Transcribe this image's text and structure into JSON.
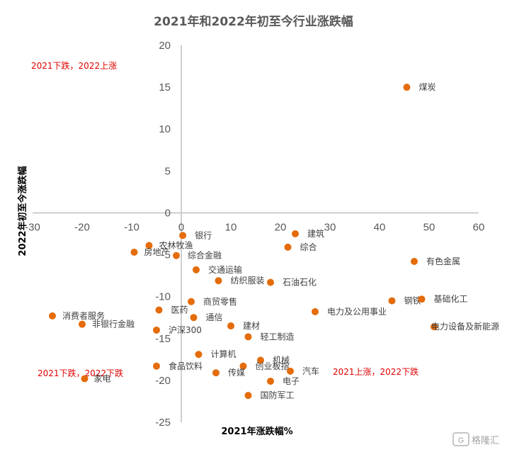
{
  "chart_data": {
    "type": "scatter",
    "title": "2021年和2022年初至今行业涨跌幅",
    "xlabel": "2021年涨跌幅%",
    "ylabel": "2022年初至今涨跌幅",
    "xlim": [
      -30,
      60
    ],
    "ylim": [
      -25,
      20
    ],
    "x_ticks": [
      "-30",
      "-20",
      "-10",
      "0",
      "10",
      "20",
      "30",
      "40",
      "50",
      "60"
    ],
    "y_ticks": [
      "20",
      "15",
      "10",
      "5",
      "0",
      "-5",
      "-10",
      "-15",
      "-20",
      "-25"
    ],
    "grid": false,
    "marker_color": "#e46c0a",
    "annotations": [
      {
        "text": "2021下跌，2022上涨",
        "color": "#e00000"
      },
      {
        "text": "2021下跌，2022下跌",
        "color": "#e00000"
      },
      {
        "text": "2021上涨，2022下跌",
        "color": "#e00000"
      }
    ],
    "points": [
      {
        "label": "煤炭",
        "x": 45.5,
        "y": 15.0
      },
      {
        "label": "建筑",
        "x": 23.0,
        "y": -2.5
      },
      {
        "label": "银行",
        "x": 0.3,
        "y": -2.7
      },
      {
        "label": "综合",
        "x": 21.5,
        "y": -4.1
      },
      {
        "label": "农林牧渔",
        "x": -6.5,
        "y": -3.9
      },
      {
        "label": "房地产",
        "x": -9.5,
        "y": -4.7
      },
      {
        "label": "综合金融",
        "x": -1.0,
        "y": -5.1
      },
      {
        "label": "有色金属",
        "x": 47.0,
        "y": -5.8
      },
      {
        "label": "交通运输",
        "x": 3.0,
        "y": -6.8
      },
      {
        "label": "纺织服装",
        "x": 7.5,
        "y": -8.1
      },
      {
        "label": "石油石化",
        "x": 18.0,
        "y": -8.3
      },
      {
        "label": "钢铁",
        "x": 42.5,
        "y": -10.5
      },
      {
        "label": "基础化工",
        "x": 48.5,
        "y": -10.3
      },
      {
        "label": "商贸零售",
        "x": 2.0,
        "y": -10.6
      },
      {
        "label": "医药",
        "x": -4.5,
        "y": -11.6
      },
      {
        "label": "电力及公用事业",
        "x": 27.0,
        "y": -11.8
      },
      {
        "label": "通信",
        "x": 2.5,
        "y": -12.5
      },
      {
        "label": "消费者服务",
        "x": -26.0,
        "y": -12.3
      },
      {
        "label": "非银行金融",
        "x": -20.0,
        "y": -13.3
      },
      {
        "label": "电力设备及新能源",
        "x": 51.0,
        "y": -13.6
      },
      {
        "label": "建材",
        "x": 10.0,
        "y": -13.5
      },
      {
        "label": "沪深300",
        "x": -5.0,
        "y": -14.0
      },
      {
        "label": "轻工制造",
        "x": 13.5,
        "y": -14.8
      },
      {
        "label": "计算机",
        "x": 3.5,
        "y": -16.9
      },
      {
        "label": "机械",
        "x": 16.0,
        "y": -17.6
      },
      {
        "label": "食品饮料",
        "x": -5.0,
        "y": -18.3
      },
      {
        "label": "创业板指",
        "x": 12.5,
        "y": -18.3
      },
      {
        "label": "汽车",
        "x": 22.0,
        "y": -18.9
      },
      {
        "label": "传媒",
        "x": 7.0,
        "y": -19.1
      },
      {
        "label": "家电",
        "x": -19.5,
        "y": -19.8
      },
      {
        "label": "电子",
        "x": 18.0,
        "y": -20.1
      },
      {
        "label": "国防军工",
        "x": 13.5,
        "y": -21.8
      }
    ]
  },
  "watermark": "格隆汇"
}
